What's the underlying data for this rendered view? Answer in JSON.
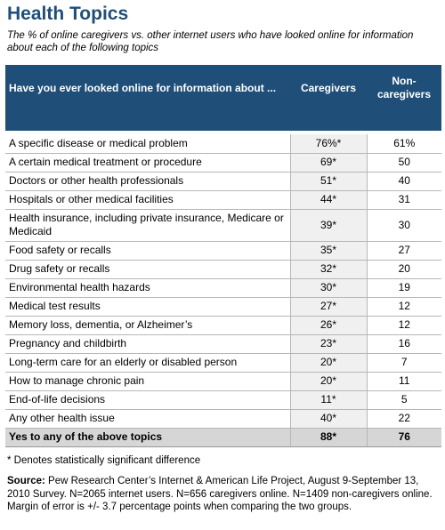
{
  "title": "Health Topics",
  "subtitle": "The % of online caregivers vs. other internet users who have looked online for information about each of the following topics",
  "chart_data": {
    "type": "table",
    "header": {
      "question": "Have you ever looked online for information about ...",
      "col1": "Caregivers",
      "col2": "Non-caregivers"
    },
    "rows": [
      {
        "label": "A specific disease or medical problem",
        "caregivers": "76%*",
        "noncaregivers": "61%"
      },
      {
        "label": "A certain medical treatment or procedure",
        "caregivers": "69*",
        "noncaregivers": "50"
      },
      {
        "label": "Doctors or other health professionals",
        "caregivers": "51*",
        "noncaregivers": "40"
      },
      {
        "label": "Hospitals or other medical facilities",
        "caregivers": "44*",
        "noncaregivers": "31"
      },
      {
        "label": "Health insurance, including private insurance, Medicare or Medicaid",
        "caregivers": "39*",
        "noncaregivers": "30"
      },
      {
        "label": "Food safety or recalls",
        "caregivers": "35*",
        "noncaregivers": "27"
      },
      {
        "label": "Drug safety or recalls",
        "caregivers": "32*",
        "noncaregivers": "20"
      },
      {
        "label": "Environmental health hazards",
        "caregivers": "30*",
        "noncaregivers": "19"
      },
      {
        "label": "Medical test results",
        "caregivers": "27*",
        "noncaregivers": "12"
      },
      {
        "label": "Memory loss, dementia, or Alzheimer’s",
        "caregivers": "26*",
        "noncaregivers": "12"
      },
      {
        "label": "Pregnancy and childbirth",
        "caregivers": "23*",
        "noncaregivers": "16"
      },
      {
        "label": "Long-term care for an elderly or disabled person",
        "caregivers": "20*",
        "noncaregivers": "7"
      },
      {
        "label": "How to manage chronic pain",
        "caregivers": "20*",
        "noncaregivers": "11"
      },
      {
        "label": "End-of-life decisions",
        "caregivers": "11*",
        "noncaregivers": "5"
      },
      {
        "label": "Any other health issue",
        "caregivers": "40*",
        "noncaregivers": "22"
      }
    ],
    "total": {
      "label": "Yes to any of the above topics",
      "caregivers": "88*",
      "noncaregivers": "76"
    }
  },
  "note": "* Denotes statistically significant difference",
  "source_label": "Source:",
  "source_text": " Pew Research Center’s Internet & American Life Project, August 9-September 13, 2010 Survey. N=2065 internet users. N=656 caregivers online. N=1409 non-caregivers online.  Margin of error is +/- 3.7 percentage points when comparing the two groups."
}
